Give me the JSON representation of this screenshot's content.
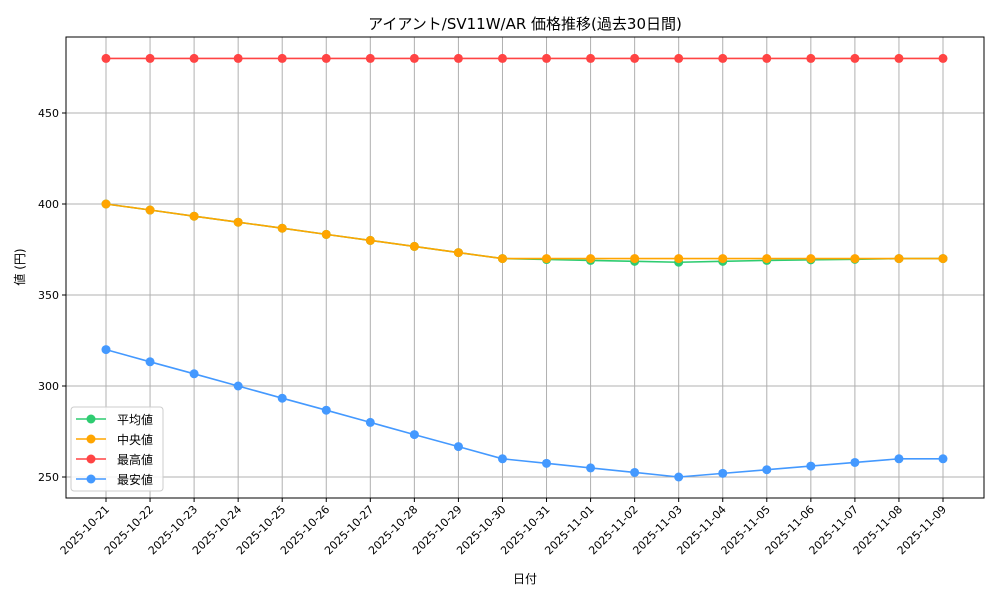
{
  "chart_data": {
    "type": "line",
    "title": "アイアント/SV11W/AR 価格推移(過去30日間)",
    "xlabel": "日付",
    "ylabel": "値 (円)",
    "ylim": [
      238,
      490
    ],
    "yticks": [
      250,
      300,
      350,
      400,
      450
    ],
    "grid": true,
    "legend_position": "lower-left",
    "x": [
      "2025-10-21",
      "2025-10-22",
      "2025-10-23",
      "2025-10-24",
      "2025-10-25",
      "2025-10-26",
      "2025-10-27",
      "2025-10-28",
      "2025-10-29",
      "2025-10-30",
      "2025-10-31",
      "2025-11-01",
      "2025-11-02",
      "2025-11-03",
      "2025-11-04",
      "2025-11-05",
      "2025-11-06",
      "2025-11-07",
      "2025-11-08",
      "2025-11-09"
    ],
    "series": [
      {
        "name": "平均値",
        "color": "#2ecc71",
        "values": [
          400,
          396.7,
          393.3,
          390,
          386.7,
          383.3,
          380,
          376.7,
          373.3,
          370,
          369.5,
          369,
          368.5,
          368,
          368.5,
          369,
          369.3,
          369.6,
          370,
          370
        ]
      },
      {
        "name": "中央値",
        "color": "#ffa500",
        "values": [
          400,
          396.7,
          393.3,
          390,
          386.7,
          383.3,
          380,
          376.7,
          373.3,
          370,
          370,
          370,
          370,
          370,
          370,
          370,
          370,
          370,
          370,
          370
        ]
      },
      {
        "name": "最高値",
        "color": "#ff4444",
        "values": [
          480,
          480,
          480,
          480,
          480,
          480,
          480,
          480,
          480,
          480,
          480,
          480,
          480,
          480,
          480,
          480,
          480,
          480,
          480,
          480
        ]
      },
      {
        "name": "最安値",
        "color": "#4499ff",
        "values": [
          320,
          313.3,
          306.7,
          300,
          293.3,
          286.7,
          280,
          273.3,
          266.7,
          260,
          257.5,
          255,
          252.5,
          250,
          252,
          254,
          256,
          258,
          260,
          260
        ]
      }
    ]
  }
}
